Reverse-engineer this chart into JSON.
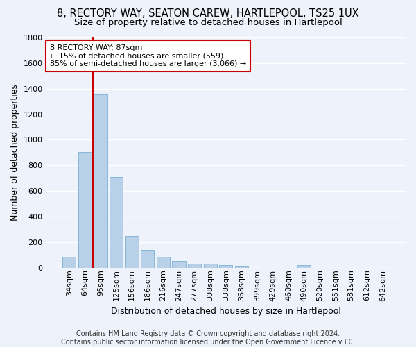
{
  "title": "8, RECTORY WAY, SEATON CAREW, HARTLEPOOL, TS25 1UX",
  "subtitle": "Size of property relative to detached houses in Hartlepool",
  "xlabel": "Distribution of detached houses by size in Hartlepool",
  "ylabel": "Number of detached properties",
  "categories": [
    "34sqm",
    "64sqm",
    "95sqm",
    "125sqm",
    "156sqm",
    "186sqm",
    "216sqm",
    "247sqm",
    "277sqm",
    "308sqm",
    "338sqm",
    "368sqm",
    "399sqm",
    "429sqm",
    "460sqm",
    "490sqm",
    "520sqm",
    "551sqm",
    "581sqm",
    "612sqm",
    "642sqm"
  ],
  "values": [
    85,
    905,
    1355,
    710,
    248,
    140,
    85,
    55,
    33,
    30,
    18,
    10,
    0,
    0,
    0,
    20,
    0,
    0,
    0,
    0,
    0
  ],
  "bar_color": "#b8d0e8",
  "bar_edge_color": "#7aafd4",
  "vline_x_pos": 1.5,
  "vline_color": "#cc0000",
  "annotation_text": "8 RECTORY WAY: 87sqm\n← 15% of detached houses are smaller (559)\n85% of semi-detached houses are larger (3,066) →",
  "annotation_box_color": "#ffffff",
  "annotation_box_edge_color": "#cc0000",
  "ylim": [
    0,
    1800
  ],
  "yticks": [
    0,
    200,
    400,
    600,
    800,
    1000,
    1200,
    1400,
    1600,
    1800
  ],
  "footnote": "Contains HM Land Registry data © Crown copyright and database right 2024.\nContains public sector information licensed under the Open Government Licence v3.0.",
  "background_color": "#eef2fa",
  "grid_color": "#ffffff",
  "title_fontsize": 10.5,
  "subtitle_fontsize": 9.5,
  "axis_label_fontsize": 9,
  "tick_fontsize": 8,
  "annotation_fontsize": 8,
  "footnote_fontsize": 7
}
